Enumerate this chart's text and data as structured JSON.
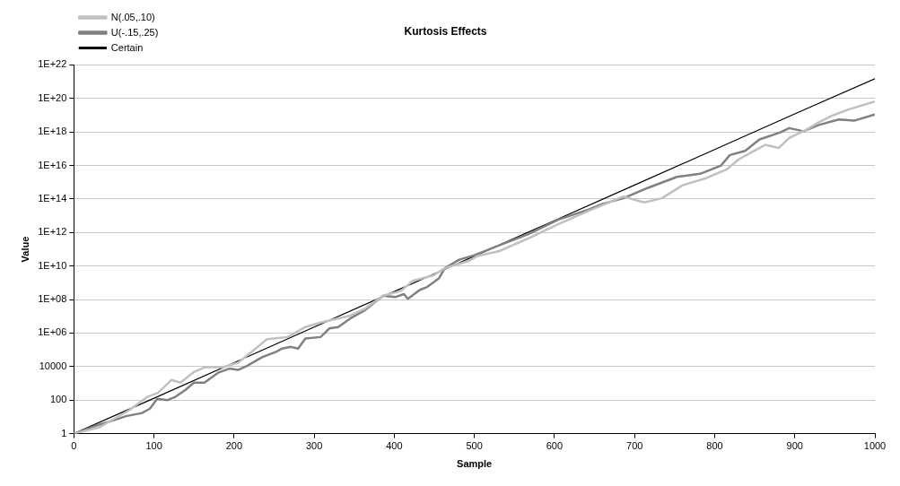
{
  "chart_data": {
    "type": "line",
    "title": "Kurtosis Effects",
    "xlabel": "Sample",
    "ylabel": "Value",
    "log": "y",
    "grid": "y",
    "legend": "top left",
    "marker": "none",
    "line_style": "solid",
    "xlim": [
      0,
      1000
    ],
    "xticks": [
      0,
      100,
      200,
      300,
      400,
      500,
      600,
      700,
      800,
      900,
      1000
    ],
    "ylim": [
      1,
      1e+22
    ],
    "yticks": [
      1,
      100,
      10000,
      {
        "value": 1000000.0,
        "label": "1E+06"
      },
      {
        "value": 100000000.0,
        "label": "1E+08"
      },
      {
        "value": 10000000000.0,
        "label": "1E+10"
      },
      {
        "value": 1000000000000.0,
        "label": "1E+12"
      },
      {
        "value": 100000000000000.0,
        "label": "1E+14"
      },
      {
        "value": 1e+16,
        "label": "1E+16"
      },
      {
        "value": 1e+18,
        "label": "1E+18"
      },
      {
        "value": 1e+20,
        "label": "1E+20"
      },
      {
        "value": 1e+22,
        "label": "1E+22"
      }
    ],
    "series": [
      {
        "name": "N(.05,.10)",
        "color": "#c0c0c0",
        "x": [
          0,
          32,
          69,
          91,
          105,
          122,
          133,
          150,
          164,
          186,
          205,
          227,
          241,
          267,
          289,
          308,
          345,
          364,
          386,
          408,
          423,
          449,
          463,
          493,
          504,
          531,
          568,
          605,
          642,
          686,
          712,
          734,
          760,
          790,
          815,
          830,
          849,
          863,
          880,
          893,
          915,
          930,
          948,
          967,
          1000
        ],
        "values": [
          1,
          2.4,
          25,
          150,
          270,
          1600,
          1100,
          4800,
          9300,
          9300,
          17000,
          120000.0,
          430000.0,
          580000.0,
          2300000.0,
          4200000.0,
          11000000.0,
          30000000.0,
          170000000.0,
          320000000.0,
          1300000000.0,
          2800000000.0,
          7400000000.0,
          20000000000.0,
          40000000000.0,
          78000000000.0,
          460000000000.0,
          3200000000000.0,
          19000000000000.0,
          140000000000000.0,
          62000000000000.0,
          110000000000000.0,
          660000000000000.0,
          1800000000000000.0,
          5800000000000000.0,
          2.3e+16,
          7.4e+16,
          1.7e+17,
          1.1e+17,
          4.4e+17,
          1.4e+18,
          3.8e+18,
          1e+19,
          2.2e+19,
          6.5e+19
        ]
      },
      {
        "name": "U(-.15,.25)",
        "color": "#808080",
        "x": [
          0,
          32,
          50,
          65,
          85,
          95,
          104,
          117,
          126,
          139,
          150,
          163,
          180,
          194,
          205,
          216,
          235,
          253,
          260,
          271,
          280,
          289,
          308,
          319,
          330,
          345,
          364,
          375,
          386,
          401,
          412,
          417,
          432,
          441,
          456,
          463,
          481,
          500,
          531,
          568,
          605,
          642,
          660,
          686,
          716,
          753,
          782,
          808,
          819,
          838,
          856,
          882,
          893,
          911,
          930,
          955,
          974,
          1000
        ],
        "values": [
          1,
          3.5,
          6.3,
          11,
          17,
          31,
          120,
          100,
          150,
          400,
          1100,
          1100,
          4300,
          7600,
          6300,
          11000,
          36000,
          79000,
          120000.0,
          150000.0,
          120000.0,
          480000.0,
          580000.0,
          1900000.0,
          2300000.0,
          7400000.0,
          24000000.0,
          66000000.0,
          170000000.0,
          140000000.0,
          210000000.0,
          110000000.0,
          380000000.0,
          560000000.0,
          1900000000.0,
          7400000000.0,
          24000000000.0,
          44000000000.0,
          170000000000.0,
          830000000000.0,
          5900000000000.0,
          23000000000000.0,
          51000000000000.0,
          110000000000000.0,
          450000000000000.0,
          2100000000000000.0,
          3200000000000000.0,
          1e+16,
          4.2e+16,
          7.4e+16,
          3.6e+17,
          9.5e+17,
          1.7e+18,
          1.1e+18,
          2.6e+18,
          5.6e+18,
          4.7e+18,
          1.1e+19
        ]
      },
      {
        "name": "Certain",
        "color": "#000000",
        "x": [
          0,
          100,
          200,
          300,
          400,
          500,
          600,
          700,
          800,
          900,
          1000
        ],
        "values": [
          1,
          130,
          17000,
          2300000.0,
          300000000.0,
          39000000000.0,
          5200000000000.0,
          680000000000000.0,
          8.9e+16,
          1.2e+19,
          1.5e+21
        ]
      }
    ]
  }
}
